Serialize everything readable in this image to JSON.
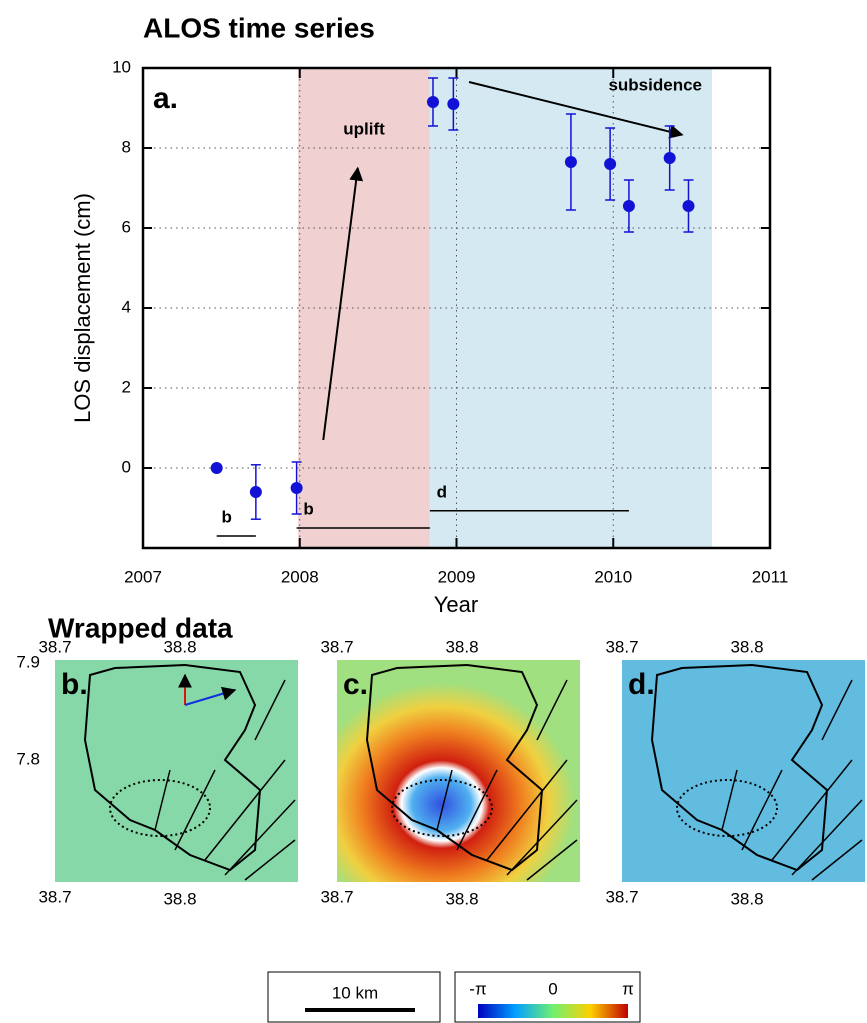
{
  "chart_data": {
    "type": "scatter",
    "title": "ALOS time series",
    "panel_label": "a.",
    "x_label": "Year",
    "y_label": "LOS displacement (cm)",
    "x": [
      2007.47,
      2007.72,
      2007.98,
      2008.85,
      2008.98,
      2009.73,
      2009.98,
      2010.1,
      2010.36,
      2010.48
    ],
    "values": [
      0,
      -0.6,
      -0.5,
      9.15,
      9.1,
      7.65,
      7.6,
      6.55,
      7.75,
      6.55
    ],
    "errors": [
      0,
      0.68,
      0.65,
      0.6,
      0.65,
      1.2,
      0.9,
      0.65,
      0.8,
      0.65
    ],
    "color": "#1212d6",
    "xlim": [
      2007,
      2011
    ],
    "xticks": [
      2007,
      2008,
      2009,
      2010,
      2011
    ],
    "ylim": [
      -2,
      10
    ],
    "yticks": [
      0,
      2,
      4,
      6,
      8,
      10
    ],
    "grid": true,
    "spans": [
      {
        "name": "uplift",
        "start": 2007.99,
        "end": 2008.83,
        "color": "#f0d0d0"
      },
      {
        "name": "subsidence",
        "start": 2008.83,
        "end": 2010.63,
        "color": "#d4e9f1"
      }
    ],
    "baselines": [
      {
        "label": "b",
        "x": [
          2007.47,
          2007.72
        ],
        "y": -1.7
      },
      {
        "label": "b",
        "x": [
          2007.98,
          2008.83
        ],
        "y": -1.5
      },
      {
        "label": "d",
        "x": [
          2008.83,
          2010.1
        ],
        "y": -1.07
      }
    ],
    "arrows": [
      {
        "x": [
          2008.15,
          2008.37
        ],
        "y": [
          0.7,
          7.5
        ]
      },
      {
        "x": [
          2009.08,
          2010.44
        ],
        "y": [
          9.65,
          8.33
        ]
      }
    ]
  },
  "maps": {
    "title": "Wrapped data",
    "lat": [
      "7.9",
      "7.8"
    ],
    "panels": [
      {
        "label": "b.",
        "lon_top": [
          "38.7",
          "38.8"
        ],
        "lon_bottom": [
          "38.7",
          "38.8"
        ]
      },
      {
        "label": "c.",
        "lon_top": [
          "38.7",
          "38.8"
        ],
        "lon_bottom": [
          "38.7",
          "38.8"
        ]
      },
      {
        "label": "d.",
        "lon_top": [
          "38.7",
          "38.8"
        ],
        "lon_bottom": [
          "38.7",
          "38.8"
        ]
      }
    ],
    "scale_bar": "10 km",
    "colorbar": [
      "-π",
      "0",
      "π"
    ]
  }
}
